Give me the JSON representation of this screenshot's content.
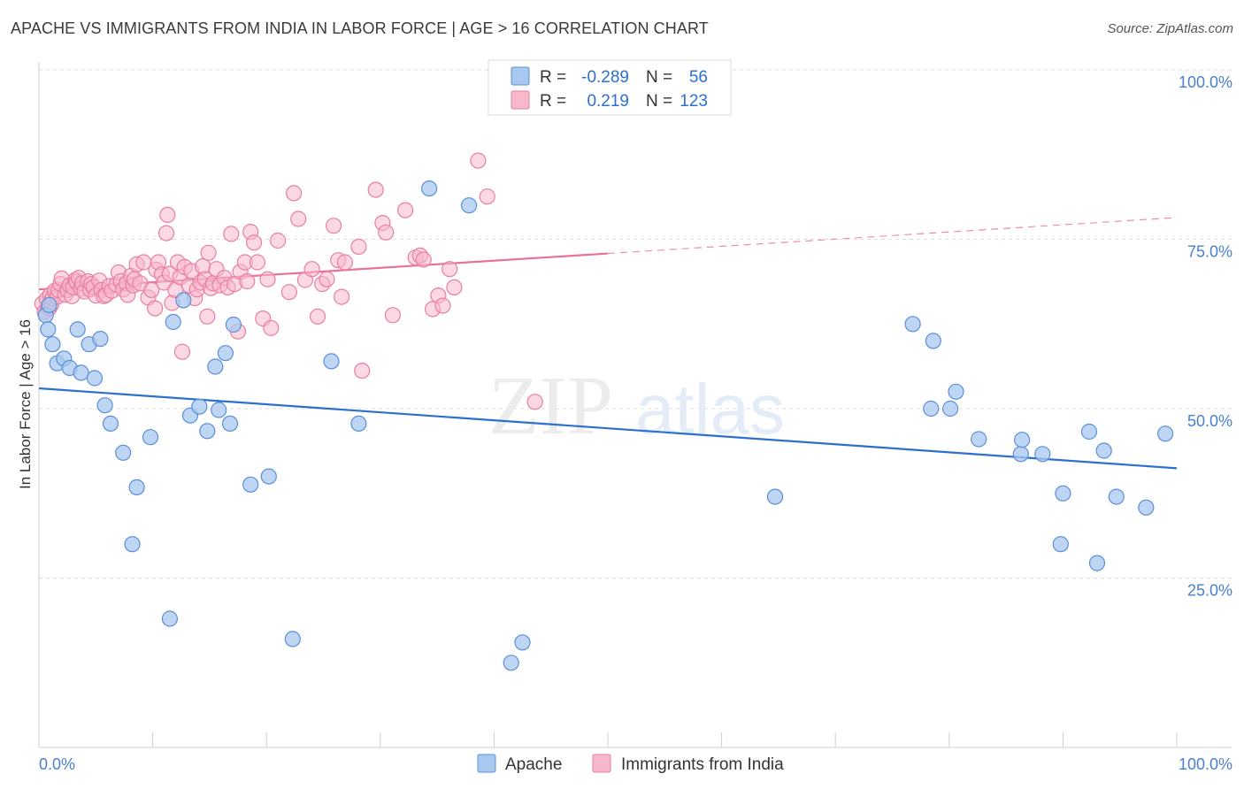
{
  "title": "APACHE VS IMMIGRANTS FROM INDIA IN LABOR FORCE | AGE > 16 CORRELATION CHART",
  "source": "Source: ZipAtlas.com",
  "watermark": {
    "zip": "ZIP",
    "atlas": "atlas"
  },
  "stats_legend": {
    "rows": [
      {
        "r_label": "R =",
        "r_value": "-0.289",
        "n_label": "N =",
        "n_value": "56",
        "color": "#a8c8f0",
        "stroke": "#5a8fd8"
      },
      {
        "r_label": "R =",
        "r_value": "0.219",
        "n_label": "N =",
        "n_value": "123",
        "color": "#f8b8cc",
        "stroke": "#e87fa0"
      }
    ]
  },
  "chart_data": {
    "type": "scatter",
    "xlabel": "",
    "ylabel": "In Labor Force | Age > 16",
    "x_tick_labels": [
      "0.0%",
      "100.0%"
    ],
    "y_tick_labels": [
      "25.0%",
      "50.0%",
      "75.0%",
      "100.0%"
    ],
    "y_ticks": [
      25,
      50,
      75,
      100
    ],
    "xlim": [
      0,
      100
    ],
    "ylim": [
      0,
      102
    ],
    "grid": true,
    "legend_position": "bottom-center",
    "series": [
      {
        "name": "Apache",
        "color": "#a8c8f0",
        "stroke": "#5a8fd8",
        "line_color": "#2c6fd0",
        "trend": {
          "x": [
            0,
            100
          ],
          "y": [
            53.0,
            41.2
          ]
        },
        "points": [
          [
            0.6,
            63.8
          ],
          [
            0.8,
            61.7
          ],
          [
            0.9,
            65.3
          ],
          [
            1.2,
            59.5
          ],
          [
            1.6,
            56.7
          ],
          [
            2.2,
            57.4
          ],
          [
            2.7,
            56.0
          ],
          [
            3.4,
            61.7
          ],
          [
            3.7,
            55.3
          ],
          [
            4.4,
            59.5
          ],
          [
            4.9,
            54.5
          ],
          [
            5.4,
            60.3
          ],
          [
            5.8,
            50.5
          ],
          [
            6.3,
            47.8
          ],
          [
            7.4,
            43.5
          ],
          [
            8.2,
            30.0
          ],
          [
            8.6,
            38.4
          ],
          [
            9.8,
            45.8
          ],
          [
            11.5,
            19.0
          ],
          [
            11.8,
            62.8
          ],
          [
            12.7,
            66.0
          ],
          [
            13.3,
            49.0
          ],
          [
            14.1,
            50.3
          ],
          [
            14.8,
            46.7
          ],
          [
            15.5,
            56.2
          ],
          [
            15.8,
            49.8
          ],
          [
            16.4,
            58.2
          ],
          [
            16.8,
            47.8
          ],
          [
            17.1,
            62.4
          ],
          [
            18.6,
            38.8
          ],
          [
            20.2,
            40.0
          ],
          [
            22.3,
            16.0
          ],
          [
            25.7,
            57.0
          ],
          [
            28.1,
            47.8
          ],
          [
            34.3,
            82.5
          ],
          [
            37.8,
            80.0
          ],
          [
            41.5,
            12.5
          ],
          [
            42.5,
            15.5
          ],
          [
            64.7,
            37.0
          ],
          [
            76.8,
            62.5
          ],
          [
            78.4,
            50.0
          ],
          [
            78.6,
            60.0
          ],
          [
            80.1,
            50.0
          ],
          [
            80.6,
            52.5
          ],
          [
            82.6,
            45.5
          ],
          [
            86.3,
            43.3
          ],
          [
            86.4,
            45.4
          ],
          [
            88.2,
            43.3
          ],
          [
            90.0,
            37.5
          ],
          [
            89.8,
            30.0
          ],
          [
            92.3,
            46.6
          ],
          [
            93.0,
            27.2
          ],
          [
            93.6,
            43.8
          ],
          [
            94.7,
            37.0
          ],
          [
            97.3,
            35.4
          ],
          [
            99.0,
            46.3
          ]
        ]
      },
      {
        "name": "Immigrants from India",
        "color": "#f8b8cc",
        "stroke": "#e87fa0",
        "line_color": "#e8709a",
        "trend": {
          "x": [
            0,
            100
          ],
          "y": [
            67.6,
            78.2
          ]
        },
        "trend_solid_until": 50,
        "points": [
          [
            0.3,
            65.5
          ],
          [
            0.5,
            64.3
          ],
          [
            0.7,
            66.2
          ],
          [
            0.8,
            65.0
          ],
          [
            0.9,
            64.8
          ],
          [
            1.0,
            66.8
          ],
          [
            1.1,
            65.4
          ],
          [
            1.2,
            66.3
          ],
          [
            1.4,
            67.4
          ],
          [
            1.6,
            66.5
          ],
          [
            1.7,
            67.5
          ],
          [
            1.9,
            68.4
          ],
          [
            2.0,
            69.2
          ],
          [
            2.3,
            66.8
          ],
          [
            2.5,
            67.5
          ],
          [
            2.7,
            68.2
          ],
          [
            2.9,
            66.6
          ],
          [
            3.0,
            67.9
          ],
          [
            3.2,
            69.0
          ],
          [
            3.3,
            68.7
          ],
          [
            3.5,
            69.3
          ],
          [
            3.7,
            67.7
          ],
          [
            3.8,
            68.5
          ],
          [
            4.0,
            67.3
          ],
          [
            4.3,
            68.8
          ],
          [
            4.5,
            67.6
          ],
          [
            4.6,
            68.4
          ],
          [
            4.8,
            67.9
          ],
          [
            5.0,
            66.7
          ],
          [
            5.3,
            68.9
          ],
          [
            5.5,
            67.5
          ],
          [
            5.7,
            66.6
          ],
          [
            5.9,
            66.8
          ],
          [
            6.2,
            68.1
          ],
          [
            6.4,
            67.4
          ],
          [
            6.8,
            68.3
          ],
          [
            7.0,
            70.1
          ],
          [
            7.2,
            68.8
          ],
          [
            7.4,
            67.6
          ],
          [
            7.7,
            68.5
          ],
          [
            7.8,
            66.8
          ],
          [
            8.1,
            69.6
          ],
          [
            8.3,
            68.2
          ],
          [
            8.4,
            69.1
          ],
          [
            8.6,
            71.3
          ],
          [
            8.9,
            68.5
          ],
          [
            9.2,
            71.6
          ],
          [
            9.6,
            66.4
          ],
          [
            9.9,
            67.5
          ],
          [
            10.2,
            64.8
          ],
          [
            10.3,
            70.5
          ],
          [
            10.5,
            71.6
          ],
          [
            10.8,
            69.8
          ],
          [
            11.0,
            68.6
          ],
          [
            11.2,
            75.9
          ],
          [
            11.3,
            78.6
          ],
          [
            11.5,
            69.9
          ],
          [
            11.7,
            65.6
          ],
          [
            12.0,
            67.5
          ],
          [
            12.2,
            71.6
          ],
          [
            12.4,
            69.4
          ],
          [
            12.6,
            58.4
          ],
          [
            12.8,
            70.9
          ],
          [
            13.2,
            68.2
          ],
          [
            13.4,
            70.3
          ],
          [
            13.7,
            66.3
          ],
          [
            13.9,
            67.6
          ],
          [
            14.2,
            68.6
          ],
          [
            14.4,
            71.0
          ],
          [
            14.6,
            69.1
          ],
          [
            14.8,
            63.6
          ],
          [
            14.9,
            73.0
          ],
          [
            15.1,
            67.8
          ],
          [
            15.3,
            68.5
          ],
          [
            15.6,
            70.6
          ],
          [
            15.9,
            68.2
          ],
          [
            16.3,
            69.3
          ],
          [
            16.6,
            67.9
          ],
          [
            16.9,
            75.8
          ],
          [
            17.2,
            68.4
          ],
          [
            17.5,
            61.4
          ],
          [
            17.7,
            70.2
          ],
          [
            18.1,
            71.6
          ],
          [
            18.3,
            68.8
          ],
          [
            18.6,
            76.1
          ],
          [
            18.9,
            74.5
          ],
          [
            19.2,
            71.6
          ],
          [
            19.7,
            63.3
          ],
          [
            20.1,
            69.1
          ],
          [
            20.4,
            61.9
          ],
          [
            21.0,
            74.8
          ],
          [
            22.0,
            67.2
          ],
          [
            22.4,
            81.8
          ],
          [
            22.8,
            78.0
          ],
          [
            23.4,
            69.0
          ],
          [
            24.0,
            70.6
          ],
          [
            24.5,
            63.6
          ],
          [
            24.9,
            68.4
          ],
          [
            25.3,
            69.1
          ],
          [
            25.9,
            77.0
          ],
          [
            26.3,
            71.9
          ],
          [
            26.6,
            66.5
          ],
          [
            26.9,
            71.6
          ],
          [
            28.1,
            73.9
          ],
          [
            28.4,
            55.6
          ],
          [
            29.6,
            82.3
          ],
          [
            30.2,
            77.4
          ],
          [
            30.5,
            76.0
          ],
          [
            31.1,
            63.8
          ],
          [
            32.2,
            79.3
          ],
          [
            33.1,
            72.3
          ],
          [
            33.5,
            72.6
          ],
          [
            33.8,
            72.0
          ],
          [
            34.6,
            64.7
          ],
          [
            35.1,
            66.7
          ],
          [
            35.5,
            65.2
          ],
          [
            36.1,
            70.6
          ],
          [
            36.5,
            67.9
          ],
          [
            38.6,
            86.6
          ],
          [
            39.4,
            81.3
          ],
          [
            43.6,
            51.0
          ]
        ]
      }
    ]
  }
}
